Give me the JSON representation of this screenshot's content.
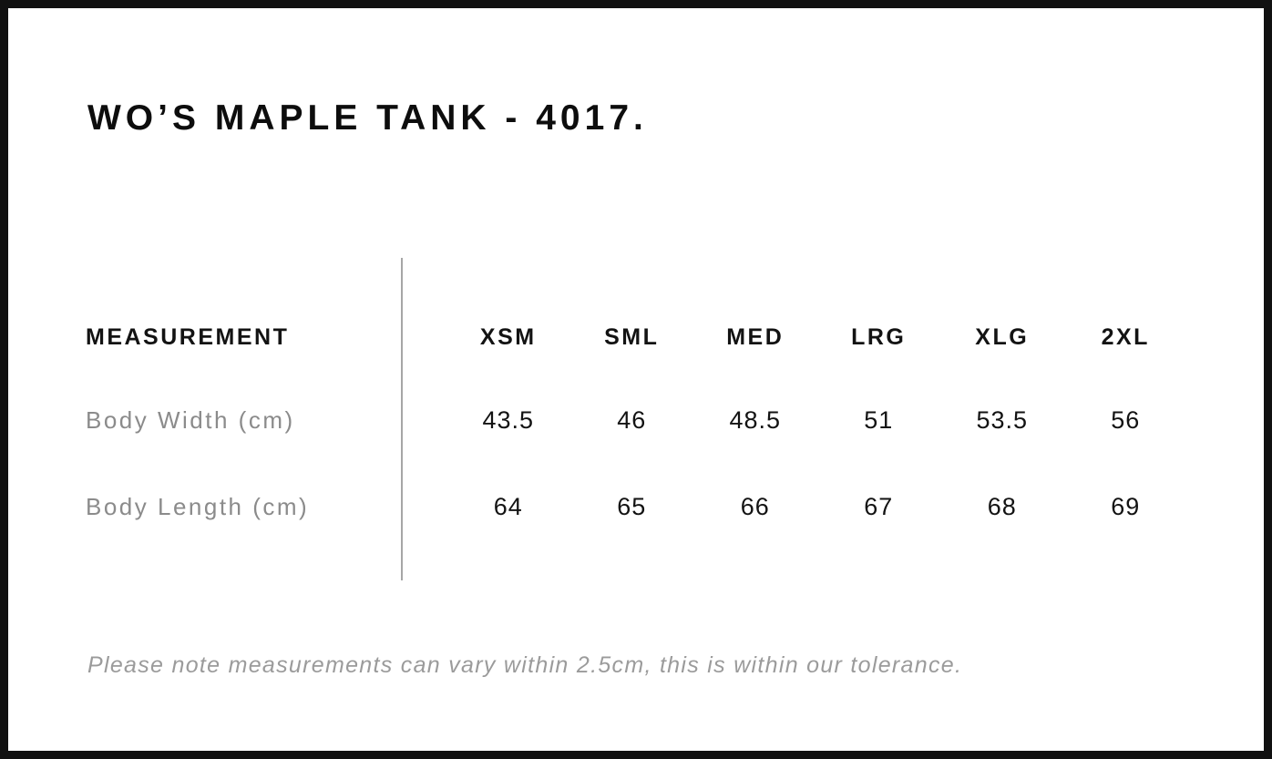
{
  "page": {
    "title": "WO’S MAPLE TANK - 4017."
  },
  "size_chart": {
    "measurement_header": "MEASUREMENT",
    "size_headers": [
      "XSM",
      "SML",
      "MED",
      "LRG",
      "XLG",
      "2XL"
    ],
    "rows": [
      {
        "label": "Body Width (cm)",
        "values": [
          "43.5",
          "46",
          "48.5",
          "51",
          "53.5",
          "56"
        ]
      },
      {
        "label": "Body Length (cm)",
        "values": [
          "64",
          "65",
          "66",
          "67",
          "68",
          "69"
        ]
      }
    ],
    "note": "Please note measurements can vary within 2.5cm, this is within our tolerance."
  },
  "colors": {
    "background": "#ffffff",
    "frame": "#111111",
    "text_primary": "#131313",
    "text_muted": "#8b8b8b",
    "note_gray": "#9b9b9b",
    "divider": "#a6a6a6"
  }
}
